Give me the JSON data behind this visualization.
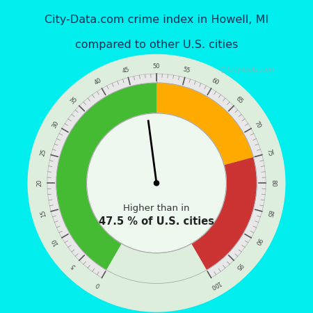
{
  "title_line1": "City-Data.com crime index in Howell, MI",
  "title_line2": "compared to other U.S. cities",
  "title_bg_color": "#00EEEE",
  "title_text_color": "#003355",
  "gauge_bg": "#c8e8d8",
  "value": 47.5,
  "text_line1": "Higher than in",
  "text_line2": "47.5 % of U.S. cities",
  "green_color": "#44bb33",
  "orange_color": "#ffaa00",
  "red_color": "#cc3333",
  "needle_value": 47.5,
  "watermark": "ⓘ City-Data.com",
  "r_outer": 1.12,
  "r_inner": 0.78,
  "r_tick_band_outer": 1.22,
  "r_tick_band_inner": 1.12
}
